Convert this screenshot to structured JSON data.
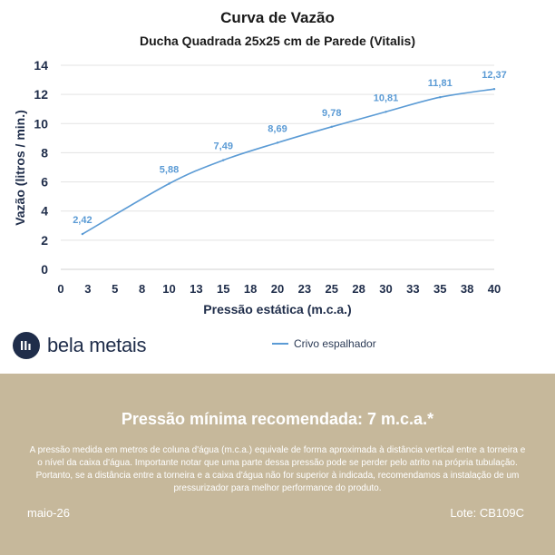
{
  "chart_data": {
    "type": "line",
    "title": "Curva de Vazão",
    "subtitle": "Ducha Quadrada 25x25 cm de Parede (Vitalis)",
    "xlabel": "Pressão estática (m.c.a.)",
    "ylabel": "Vazão (litros / min.)",
    "xlim": [
      0,
      40
    ],
    "ylim": [
      0,
      14
    ],
    "x_ticks": [
      "0",
      "3",
      "5",
      "8",
      "10",
      "13",
      "15",
      "18",
      "20",
      "23",
      "25",
      "28",
      "30",
      "33",
      "35",
      "38",
      "40"
    ],
    "y_ticks": [
      "0",
      "2",
      "4",
      "6",
      "8",
      "10",
      "12",
      "14"
    ],
    "grid": true,
    "legend_position": "bottom",
    "series": [
      {
        "name": "Crivo espalhador",
        "color": "#5b9bd5",
        "x": [
          2,
          10,
          15,
          20,
          25,
          30,
          35,
          40
        ],
        "values": [
          2.42,
          5.88,
          7.49,
          8.69,
          9.78,
          10.81,
          11.81,
          12.37
        ],
        "labels": [
          "2,42",
          "5,88",
          "7,49",
          "8,69",
          "9,78",
          "10,81",
          "11,81",
          "12,37"
        ]
      }
    ]
  },
  "brand": {
    "name": "bela metais"
  },
  "note": {
    "title": "Pressão mínima recomendada: 7 m.c.a.*",
    "body": "A pressão medida em metros de coluna d'água (m.c.a.) equivale de forma aproximada à distância vertical entre a torneira e o nível da caixa d'água. Importante notar que uma parte dessa pressão pode se perder pelo atrito na própria tubulação. Portanto, se a distância entre a torneira e a caixa d'água não for superior à indicada, recomendamos a instalação de um pressurizador para melhor performance do produto.",
    "date": "maio-26",
    "lote": "Lote: CB109C"
  }
}
